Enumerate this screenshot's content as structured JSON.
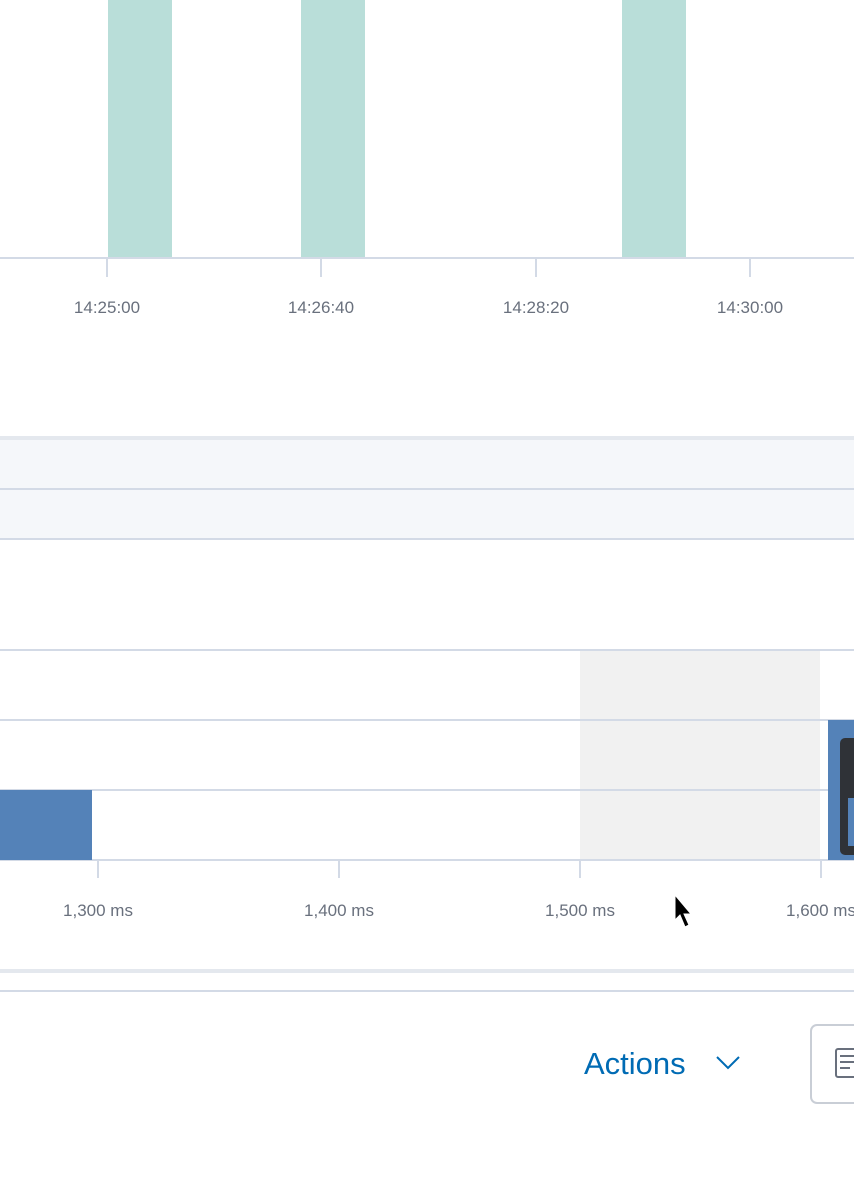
{
  "top_chart": {
    "x_tick_labels": [
      "14:25:00",
      "14:26:40",
      "14:28:20",
      "14:30:00"
    ]
  },
  "waterfall": {
    "x_tick_labels": [
      "1,300 ms",
      "1,400 ms",
      "1,500 ms",
      "1,600 ms"
    ]
  },
  "actions": {
    "label": "Actions"
  }
}
